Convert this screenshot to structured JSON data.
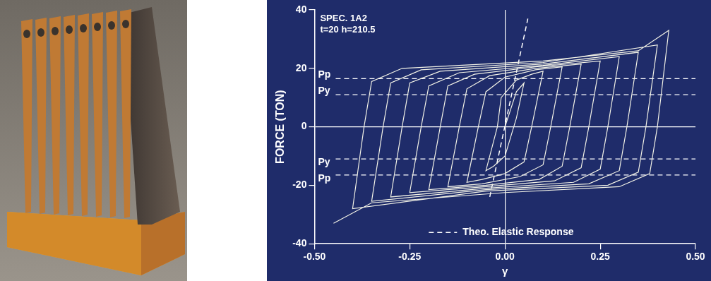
{
  "chart_data": {
    "type": "line",
    "annotations": [
      "SPEC. 1A2",
      "t=20 h=210.5"
    ],
    "y_label": "FORCE (TON)",
    "x_label": "γ",
    "xlim": [
      -0.5,
      0.5
    ],
    "xticks": [
      {
        "value": -0.5,
        "label": "-0.50"
      },
      {
        "value": -0.25,
        "label": "-0.25"
      },
      {
        "value": 0,
        "label": "0.00"
      },
      {
        "value": 0.25,
        "label": "0.25"
      },
      {
        "value": 0.5,
        "label": "0.50"
      }
    ],
    "ylim": [
      -40,
      40
    ],
    "yticks": [
      -40,
      -20,
      0,
      20,
      40
    ],
    "grid": false,
    "legend": "bottom",
    "reference_lines": [
      {
        "label": "Pp",
        "value": 16.5
      },
      {
        "label": "Py",
        "value": 11
      },
      {
        "label": "Py",
        "value": -11
      },
      {
        "label": "Pp",
        "value": -16.5
      }
    ],
    "series": [
      {
        "color": "#f2f2e6",
        "line_style": "solid",
        "x": [
          0,
          0.03,
          0.05,
          0.03,
          0.0,
          -0.03,
          -0.05,
          -0.02,
          -0.01,
          0.03,
          0.07,
          0.1,
          0.07,
          0.05,
          0.0,
          -0.06,
          -0.1,
          -0.07,
          -0.05,
          0.0,
          0.08,
          0.15,
          0.12,
          0.1,
          0.04,
          -0.06,
          -0.15,
          -0.12,
          -0.1,
          -0.04,
          0.08,
          0.2,
          0.17,
          0.15,
          0.09,
          -0.05,
          -0.2,
          -0.17,
          -0.15,
          -0.08,
          0.08,
          0.25,
          0.22,
          0.2,
          0.13,
          -0.05,
          -0.25,
          -0.22,
          -0.2,
          -0.12,
          0.1,
          0.3,
          0.27,
          0.25,
          0.18,
          -0.05,
          -0.3,
          -0.27,
          -0.25,
          -0.17,
          0.1,
          0.35,
          0.32,
          0.3,
          0.22,
          -0.05,
          -0.35,
          -0.32,
          -0.3,
          -0.22,
          0.1,
          0.4,
          0.37,
          0.35,
          0.27,
          -0.05,
          -0.4,
          -0.37,
          -0.35,
          -0.27,
          0.1,
          0.35,
          0.43,
          0.4,
          0.38,
          0.3,
          0.0,
          -0.35,
          -0.45
        ],
        "values": [
          0,
          12,
          15,
          3,
          -10,
          -13.5,
          -15,
          0,
          10,
          16,
          18,
          19,
          0,
          -12,
          -16,
          -18,
          -19,
          0,
          12,
          17,
          19.5,
          20.5,
          0,
          -13,
          -17,
          -19.5,
          -20.5,
          0,
          13,
          17.5,
          20,
          21.5,
          0,
          -13.5,
          -18,
          -20,
          -21.5,
          0,
          14,
          18,
          20.5,
          22.5,
          0,
          -14,
          -18.5,
          -20.5,
          -22.5,
          0,
          14,
          18.5,
          21,
          24,
          0,
          -14.5,
          -19,
          -21,
          -24,
          0,
          15,
          19,
          21.5,
          25.5,
          0,
          -15,
          -19.5,
          -21.5,
          -25.5,
          0,
          15,
          19.5,
          22,
          28,
          0,
          -15.5,
          -20,
          -22,
          -28,
          0,
          15.5,
          20,
          22.5,
          26,
          33,
          0,
          -16,
          -20.5,
          -22.5,
          -26,
          -33
        ]
      },
      {
        "name": "Theo. Elastic Response",
        "color": "#ffffff",
        "line_style": "dashed",
        "x": [
          -0.04,
          0.06
        ],
        "values": [
          -24,
          37
        ]
      }
    ]
  }
}
